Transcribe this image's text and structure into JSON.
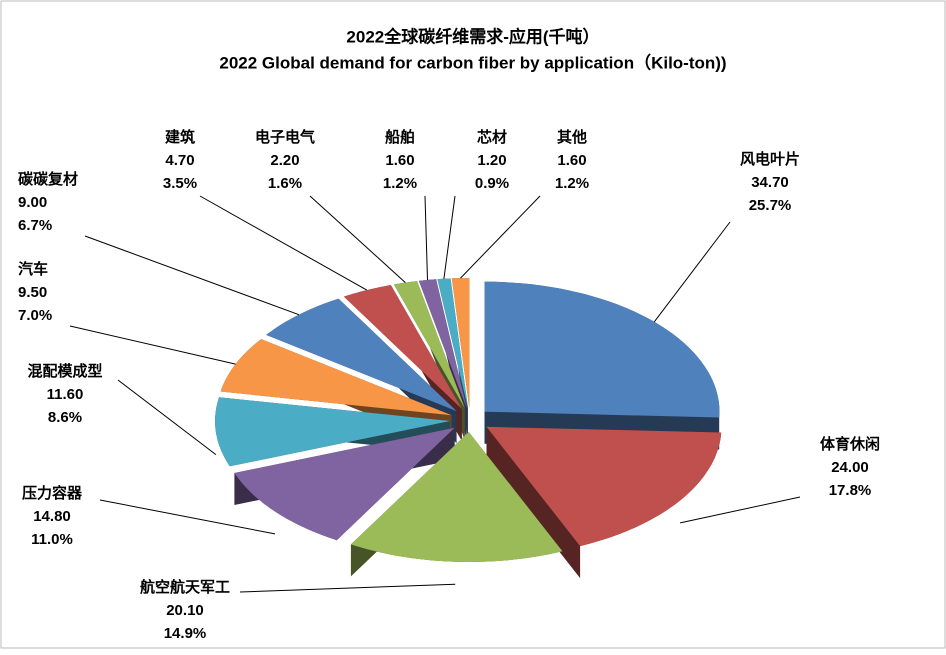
{
  "chart_data": {
    "type": "pie3d",
    "title": "2022全球碳纤维需求-应用(千吨）",
    "subtitle": "2022 Global demand for carbon fiber by application（Kilo-ton))",
    "categories": [
      "风电叶片",
      "体育休闲",
      "航空航天军工",
      "压力容器",
      "混配模成型",
      "汽车",
      "碳碳复材",
      "建筑",
      "电子电气",
      "船舶",
      "芯材",
      "其他"
    ],
    "values": [
      34.7,
      24.0,
      20.1,
      14.8,
      11.6,
      9.5,
      9.0,
      4.7,
      2.2,
      1.6,
      1.2,
      1.6
    ],
    "value_labels": [
      "34.70",
      "24.00",
      "20.10",
      "14.80",
      "11.60",
      "9.50",
      "9.00",
      "4.70",
      "2.20",
      "1.60",
      "1.20",
      "1.60"
    ],
    "percent_labels": [
      "25.7%",
      "17.8%",
      "14.9%",
      "11.0%",
      "8.6%",
      "7.0%",
      "6.7%",
      "3.5%",
      "1.6%",
      "1.2%",
      "0.9%",
      "1.2%"
    ],
    "colors": [
      "#4f81bd",
      "#c0504d",
      "#9bbb59",
      "#8064a2",
      "#4bacc6",
      "#f79646",
      "#4f81bd",
      "#c0504d",
      "#9bbb59",
      "#8064a2",
      "#4bacc6",
      "#f79646"
    ]
  }
}
